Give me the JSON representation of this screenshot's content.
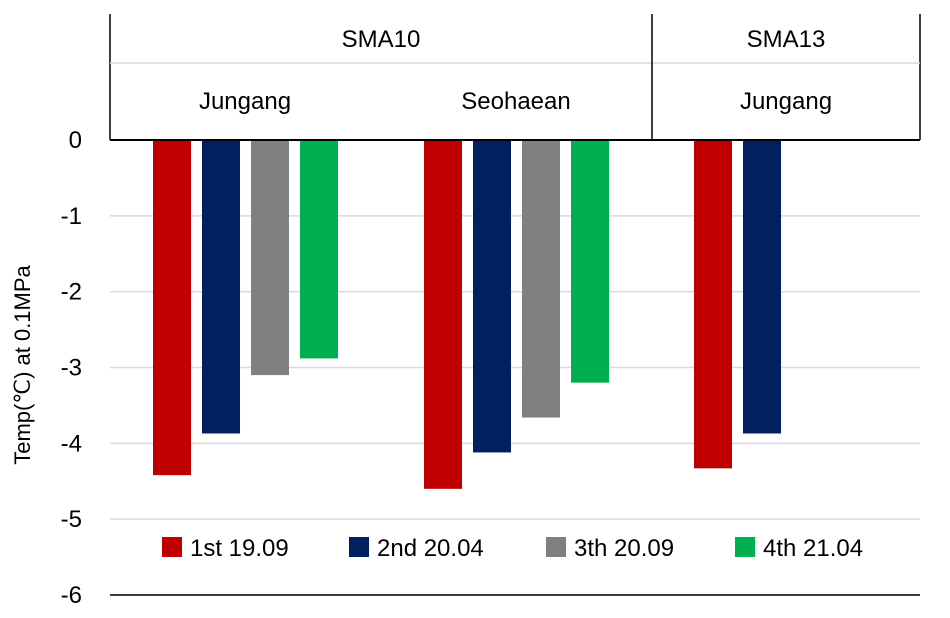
{
  "chart_data": {
    "type": "bar",
    "title": "",
    "ylabel": "Temp(℃) at 0.1MPa",
    "xlabel": "",
    "ylim": [
      -6,
      0
    ],
    "yticks": [
      0,
      -1,
      -2,
      -3,
      -4,
      -5,
      -6
    ],
    "grid": true,
    "legend_position": "bottom-inside",
    "header_levels": {
      "top": [
        "SMA10",
        "SMA13"
      ],
      "sub": [
        "Jungang",
        "Seohaean",
        "Jungang"
      ]
    },
    "categories": [
      "SMA10 Jungang",
      "SMA10 Seohaean",
      "SMA13 Jungang"
    ],
    "series": [
      {
        "name": "1st 19.09",
        "color": "#C00000",
        "values": [
          -4.42,
          -4.6,
          -4.33
        ]
      },
      {
        "name": "2nd 20.04",
        "color": "#002060",
        "values": [
          -3.87,
          -4.12,
          -3.87
        ]
      },
      {
        "name": "3th 20.09",
        "color": "#808080",
        "values": [
          -3.1,
          -3.66,
          null
        ]
      },
      {
        "name": "4th 21.04",
        "color": "#00B050",
        "values": [
          -2.88,
          -3.2,
          null
        ]
      }
    ]
  }
}
